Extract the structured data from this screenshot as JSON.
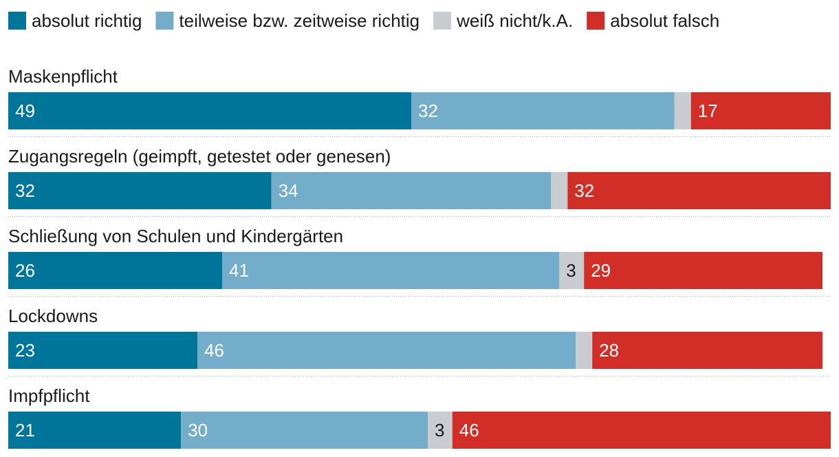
{
  "chart_data": {
    "type": "bar",
    "orientation": "horizontal",
    "stacked": true,
    "categories": [
      "Maskenpflicht",
      "Zugangsregeln (geimpft, getestet oder genesen)",
      "Schließung von Schulen und Kindergärten",
      "Lockdowns",
      "Impfpflicht"
    ],
    "series": [
      {
        "name": "absolut richtig",
        "color": "#00759a",
        "label_color": "#ffffff",
        "values": [
          49,
          32,
          26,
          23,
          21
        ]
      },
      {
        "name": "teilweise bzw. zeitweise richtig",
        "color": "#73adc9",
        "label_color": "#ffffff",
        "values": [
          32,
          34,
          41,
          46,
          30
        ]
      },
      {
        "name": "weiß nicht/k.A.",
        "color": "#c9cdd1",
        "label_color": "#1a1a1a",
        "values": [
          2,
          2,
          3,
          2,
          3
        ]
      },
      {
        "name": "absolut falsch",
        "color": "#d02e26",
        "label_color": "#ffffff",
        "values": [
          17,
          32,
          29,
          28,
          46
        ]
      }
    ],
    "label_min_value": 3,
    "xlim": [
      0,
      100
    ],
    "grid": false,
    "legend_position": "top-left"
  }
}
